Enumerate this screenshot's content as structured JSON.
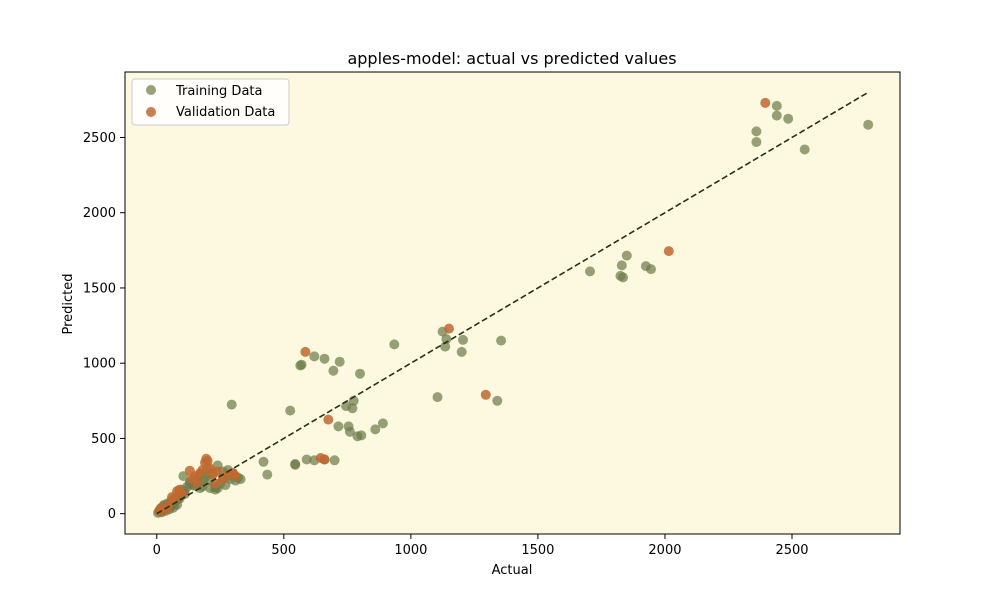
{
  "chart_data": {
    "type": "scatter",
    "title": "apples-model: actual vs predicted values",
    "xlabel": "Actual",
    "ylabel": "Predicted",
    "xlim": [
      -125,
      2925
    ],
    "ylim": [
      -135,
      2935
    ],
    "x_ticks": [
      0,
      500,
      1000,
      1500,
      2000,
      2500
    ],
    "y_ticks": [
      0,
      500,
      1000,
      1500,
      2000,
      2500
    ],
    "grid": false,
    "legend_position": "top-left",
    "background_color": "#fdf9e0",
    "reference_line": {
      "style": "dashed",
      "color": "#263018",
      "from": [
        0,
        0
      ],
      "to": [
        2800,
        2800
      ]
    },
    "series": [
      {
        "name": "Training Data",
        "color": "#6b7a47",
        "points": [
          [
            2360,
            2540
          ],
          [
            2360,
            2470
          ],
          [
            2440,
            2710
          ],
          [
            2440,
            2645
          ],
          [
            2485,
            2625
          ],
          [
            2550,
            2420
          ],
          [
            2800,
            2585
          ],
          [
            1705,
            1610
          ],
          [
            1825,
            1580
          ],
          [
            1835,
            1570
          ],
          [
            1830,
            1650
          ],
          [
            1850,
            1715
          ],
          [
            1925,
            1645
          ],
          [
            1945,
            1625
          ],
          [
            1125,
            1210
          ],
          [
            1140,
            1160
          ],
          [
            1135,
            1110
          ],
          [
            1200,
            1075
          ],
          [
            1205,
            1155
          ],
          [
            1355,
            1150
          ],
          [
            1105,
            775
          ],
          [
            1340,
            750
          ],
          [
            935,
            1125
          ],
          [
            565,
            985
          ],
          [
            570,
            990
          ],
          [
            620,
            1045
          ],
          [
            660,
            1030
          ],
          [
            720,
            1010
          ],
          [
            695,
            950
          ],
          [
            800,
            930
          ],
          [
            525,
            685
          ],
          [
            295,
            725
          ],
          [
            745,
            715
          ],
          [
            775,
            750
          ],
          [
            770,
            700
          ],
          [
            715,
            580
          ],
          [
            755,
            580
          ],
          [
            760,
            545
          ],
          [
            790,
            515
          ],
          [
            805,
            520
          ],
          [
            860,
            560
          ],
          [
            890,
            600
          ],
          [
            420,
            345
          ],
          [
            435,
            260
          ],
          [
            545,
            330
          ],
          [
            545,
            325
          ],
          [
            590,
            360
          ],
          [
            620,
            355
          ],
          [
            660,
            360
          ],
          [
            700,
            355
          ],
          [
            5,
            5
          ],
          [
            10,
            20
          ],
          [
            15,
            35
          ],
          [
            20,
            10
          ],
          [
            25,
            50
          ],
          [
            30,
            60
          ],
          [
            35,
            20
          ],
          [
            40,
            45
          ],
          [
            45,
            70
          ],
          [
            50,
            30
          ],
          [
            55,
            55
          ],
          [
            60,
            90
          ],
          [
            65,
            40
          ],
          [
            70,
            80
          ],
          [
            75,
            110
          ],
          [
            80,
            60
          ],
          [
            85,
            100
          ],
          [
            90,
            140
          ],
          [
            95,
            120
          ],
          [
            100,
            160
          ],
          [
            105,
            250
          ],
          [
            110,
            130
          ],
          [
            120,
            180
          ],
          [
            130,
            210
          ],
          [
            140,
            190
          ],
          [
            150,
            230
          ],
          [
            160,
            200
          ],
          [
            170,
            260
          ],
          [
            180,
            180
          ],
          [
            190,
            240
          ],
          [
            200,
            300
          ],
          [
            210,
            220
          ],
          [
            220,
            270
          ],
          [
            230,
            160
          ],
          [
            240,
            320
          ],
          [
            250,
            200
          ],
          [
            260,
            280
          ],
          [
            270,
            190
          ],
          [
            280,
            250
          ],
          [
            290,
            230
          ],
          [
            300,
            270
          ],
          [
            310,
            220
          ],
          [
            320,
            240
          ],
          [
            330,
            230
          ],
          [
            240,
            170
          ],
          [
            230,
            175
          ],
          [
            170,
            170
          ],
          [
            150,
            185
          ],
          [
            130,
            200
          ],
          [
            110,
            150
          ],
          [
            90,
            100
          ],
          [
            70,
            60
          ],
          [
            50,
            45
          ],
          [
            30,
            25
          ],
          [
            15,
            15
          ],
          [
            200,
            270
          ],
          [
            180,
            220
          ],
          [
            260,
            230
          ],
          [
            210,
            170
          ],
          [
            280,
            290
          ]
        ]
      },
      {
        "name": "Validation Data",
        "color": "#c0692f",
        "points": [
          [
            2395,
            2730
          ],
          [
            2015,
            1745
          ],
          [
            1150,
            1230
          ],
          [
            1295,
            790
          ],
          [
            585,
            1075
          ],
          [
            675,
            625
          ],
          [
            645,
            370
          ],
          [
            660,
            360
          ],
          [
            10,
            15
          ],
          [
            20,
            40
          ],
          [
            40,
            30
          ],
          [
            50,
            70
          ],
          [
            60,
            110
          ],
          [
            70,
            100
          ],
          [
            80,
            150
          ],
          [
            90,
            160
          ],
          [
            100,
            130
          ],
          [
            130,
            285
          ],
          [
            150,
            250
          ],
          [
            170,
            270
          ],
          [
            180,
            290
          ],
          [
            190,
            340
          ],
          [
            195,
            365
          ],
          [
            200,
            350
          ],
          [
            210,
            300
          ],
          [
            220,
            260
          ],
          [
            240,
            280
          ],
          [
            260,
            230
          ],
          [
            280,
            260
          ],
          [
            300,
            270
          ],
          [
            310,
            250
          ],
          [
            160,
            200
          ],
          [
            140,
            230
          ],
          [
            230,
            200
          ]
        ]
      }
    ]
  }
}
